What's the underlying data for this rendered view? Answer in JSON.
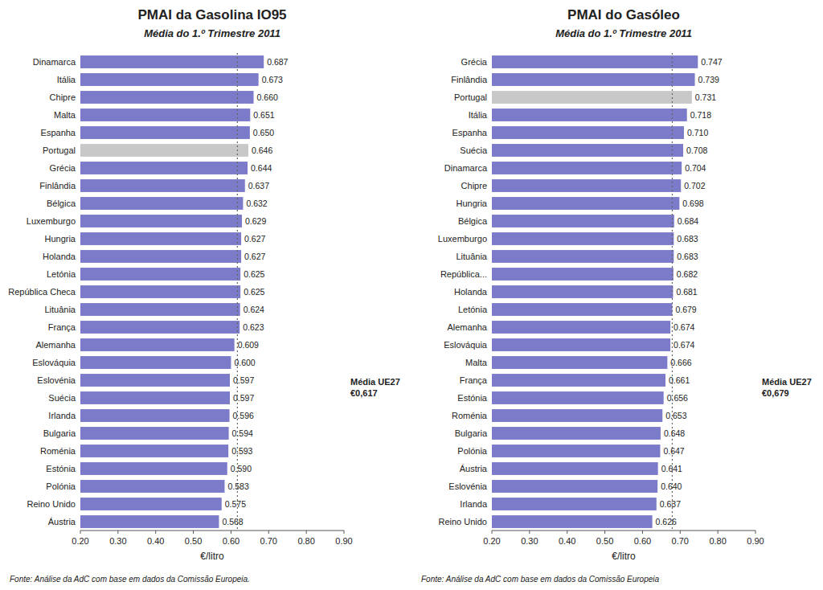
{
  "chart_data": [
    {
      "type": "bar",
      "orientation": "horizontal",
      "title": "PMAI da Gasolina IO95",
      "subtitle": "Média do 1.º Trimestre 2011",
      "categories": [
        "Dinamarca",
        "Itália",
        "Chipre",
        "Malta",
        "Espanha",
        "Portugal",
        "Grécia",
        "Finlândia",
        "Bélgica",
        "Luxemburgo",
        "Hungria",
        "Holanda",
        "Letónia",
        "República Checa",
        "Lituânia",
        "França",
        "Alemanha",
        "Eslováquia",
        "Eslovénia",
        "Suécia",
        "Irlanda",
        "Bulgaria",
        "Roménia",
        "Estónia",
        "Polónia",
        "Reino Unido",
        "Áustria"
      ],
      "values": [
        0.687,
        0.673,
        0.66,
        0.651,
        0.65,
        0.646,
        0.644,
        0.637,
        0.632,
        0.629,
        0.627,
        0.627,
        0.625,
        0.625,
        0.624,
        0.623,
        0.609,
        0.6,
        0.597,
        0.597,
        0.596,
        0.594,
        0.593,
        0.59,
        0.583,
        0.575,
        0.568
      ],
      "value_labels": [
        "0.687",
        "0.673",
        "0.660",
        "0.651",
        "0.650",
        "0.646",
        "0.644",
        "0.637",
        "0.632",
        "0.629",
        "0.627",
        "0.627",
        "0.625",
        "0.625",
        "0.624",
        "0.623",
        "0.609",
        "0.600",
        "0.597",
        "0.597",
        "0.596",
        "0.594",
        "0.593",
        "0.590",
        "0.583",
        "0.575",
        "0.568"
      ],
      "data_labels": true,
      "colors": [
        "#7b7bca",
        "#7b7bca",
        "#7b7bca",
        "#7b7bca",
        "#7b7bca",
        "#c8c8c8",
        "#7b7bca",
        "#7b7bca",
        "#7b7bca",
        "#7b7bca",
        "#7b7bca",
        "#7b7bca",
        "#7b7bca",
        "#7b7bca",
        "#7b7bca",
        "#7b7bca",
        "#7b7bca",
        "#7b7bca",
        "#7b7bca",
        "#7b7bca",
        "#7b7bca",
        "#7b7bca",
        "#7b7bca",
        "#7b7bca",
        "#7b7bca",
        "#7b7bca",
        "#7b7bca"
      ],
      "reference_line": {
        "value": 0.617,
        "label": "Média UE27\n€0,617"
      },
      "xlabel": "€/litro",
      "source": "Fonte: Análise da AdC com base em dados da Comissão Europeia.",
      "xlim": [
        0.2,
        0.9
      ],
      "xticks": [
        {
          "value": 0.2,
          "label": "0.20"
        },
        {
          "value": 0.3,
          "label": "0.30"
        },
        {
          "value": 0.4,
          "label": "0.40"
        },
        {
          "value": 0.5,
          "label": "0.50"
        },
        {
          "value": 0.6,
          "label": "0.60"
        },
        {
          "value": 0.7,
          "label": "0.70"
        },
        {
          "value": 0.8,
          "label": "0.80"
        },
        {
          "value": 0.9,
          "label": "0.90"
        }
      ],
      "grid": false
    },
    {
      "type": "bar",
      "orientation": "horizontal",
      "title": "PMAI do Gasóleo",
      "subtitle": "Média do 1.º Trimestre 2011",
      "categories": [
        "Grécia",
        "Finlândia",
        "Portugal",
        "Itália",
        "Espanha",
        "Suécia",
        "Dinamarca",
        "Chipre",
        "Hungria",
        "Bélgica",
        "Luxemburgo",
        "Lituânia",
        "República...",
        "Holanda",
        "Letónia",
        "Alemanha",
        "Eslováquia",
        "Malta",
        "França",
        "Estónia",
        "Roménia",
        "Bulgaria",
        "Polónia",
        "Áustria",
        "Eslovénia",
        "Irlanda",
        "Reino Unido"
      ],
      "values": [
        0.747,
        0.739,
        0.731,
        0.718,
        0.71,
        0.708,
        0.704,
        0.702,
        0.698,
        0.684,
        0.683,
        0.683,
        0.682,
        0.681,
        0.679,
        0.674,
        0.674,
        0.666,
        0.661,
        0.656,
        0.653,
        0.648,
        0.647,
        0.641,
        0.64,
        0.637,
        0.626
      ],
      "value_labels": [
        "0.747",
        "0.739",
        "0.731",
        "0.718",
        "0.710",
        "0.708",
        "0.704",
        "0.702",
        "0.698",
        "0.684",
        "0.683",
        "0.683",
        "0.682",
        "0.681",
        "0.679",
        "0.674",
        "0.674",
        "0.666",
        "0.661",
        "0.656",
        "0.653",
        "0.648",
        "0.647",
        "0.641",
        "0.640",
        "0.637",
        "0.626"
      ],
      "data_labels": true,
      "colors": [
        "#7b7bca",
        "#7b7bca",
        "#c8c8c8",
        "#7b7bca",
        "#7b7bca",
        "#7b7bca",
        "#7b7bca",
        "#7b7bca",
        "#7b7bca",
        "#7b7bca",
        "#7b7bca",
        "#7b7bca",
        "#7b7bca",
        "#7b7bca",
        "#7b7bca",
        "#7b7bca",
        "#7b7bca",
        "#7b7bca",
        "#7b7bca",
        "#7b7bca",
        "#7b7bca",
        "#7b7bca",
        "#7b7bca",
        "#7b7bca",
        "#7b7bca",
        "#7b7bca",
        "#7b7bca"
      ],
      "reference_line": {
        "value": 0.679,
        "label": "Média UE27\n€0,679"
      },
      "xlabel": "€/litro",
      "source": "Fonte: Análise da AdC com base em dados da Comissão Europeia",
      "xlim": [
        0.2,
        0.9
      ],
      "xticks": [
        {
          "value": 0.2,
          "label": "0.20"
        },
        {
          "value": 0.3,
          "label": "0.30"
        },
        {
          "value": 0.4,
          "label": "0.40"
        },
        {
          "value": 0.5,
          "label": "0.50"
        },
        {
          "value": 0.6,
          "label": "0.60"
        },
        {
          "value": 0.7,
          "label": "0.70"
        },
        {
          "value": 0.8,
          "label": "0.80"
        },
        {
          "value": 0.9,
          "label": "0.90"
        }
      ],
      "grid": false
    }
  ]
}
